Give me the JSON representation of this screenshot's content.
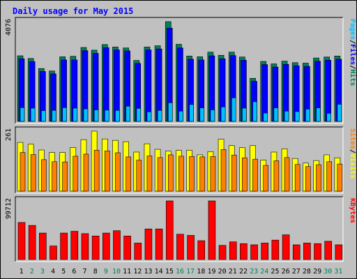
{
  "colors": {
    "background": "#c0c0c0",
    "panel": "#c0c0c0",
    "title": "#0000ff",
    "hits": "#00805c",
    "files": "#0000ff",
    "pages": "#00c0ff",
    "visits": "#ffff00",
    "sites": "#ff8000",
    "kbytes": "#ff0000",
    "weekday_label": "#000000",
    "weekend_label": "#00805c"
  },
  "chart_data": {
    "type": "bar",
    "title": "Daily usage for May 2015",
    "categories": [
      "1",
      "2",
      "3",
      "4",
      "5",
      "6",
      "7",
      "8",
      "9",
      "10",
      "11",
      "12",
      "13",
      "14",
      "15",
      "16",
      "17",
      "18",
      "19",
      "20",
      "21",
      "22",
      "23",
      "24",
      "25",
      "26",
      "27",
      "28",
      "29",
      "30",
      "31"
    ],
    "weekend_days": [
      "2",
      "3",
      "9",
      "10",
      "16",
      "17",
      "23",
      "24",
      "30",
      "31"
    ],
    "panels": [
      {
        "id": "hits",
        "ymax": 4076,
        "ymax_label": "4076",
        "right_label": [
          "Pages",
          "Files",
          "Hits"
        ],
        "series": [
          {
            "name": "Hits",
            "values": [
              2680,
              2570,
              2160,
              2060,
              2640,
              2660,
              3020,
              2910,
              3140,
              3040,
              3000,
              2490,
              3040,
              3090,
              4076,
              3150,
              2670,
              2640,
              2830,
              2700,
              2830,
              2630,
              1760,
              2450,
              2350,
              2460,
              2400,
              2380,
              2590,
              2630,
              2670
            ]
          },
          {
            "name": "Files",
            "values": [
              2560,
              2440,
              2040,
              1940,
              2510,
              2510,
              2890,
              2780,
              3010,
              2920,
              2880,
              2370,
              2920,
              2960,
              3810,
              3000,
              2540,
              2510,
              2680,
              2560,
              2690,
              2500,
              1640,
              2320,
              2220,
              2330,
              2270,
              2250,
              2460,
              2500,
              2540
            ]
          },
          {
            "name": "Pages",
            "values": [
              560,
              540,
              440,
              450,
              560,
              540,
              510,
              470,
              460,
              450,
              620,
              530,
              390,
              450,
              760,
              420,
              690,
              550,
              470,
              590,
              960,
              540,
              800,
              340,
              550,
              420,
              400,
              500,
              550,
              330,
              700
            ]
          }
        ]
      },
      {
        "id": "visits",
        "ymax": 261,
        "ymax_label": "261",
        "right_label": [
          "Sites",
          "Visits"
        ],
        "series": [
          {
            "name": "Visits",
            "values": [
              212,
              204,
              179,
              168,
              168,
              190,
              224,
              261,
              227,
              221,
              215,
              170,
              206,
              182,
              174,
              177,
              178,
              158,
              172,
              226,
              198,
              189,
              198,
              135,
              170,
              184,
              142,
              122,
              133,
              158,
              145
            ]
          },
          {
            "name": "Sites",
            "values": [
              168,
              159,
              137,
              128,
              127,
              152,
              161,
              178,
              175,
              167,
              149,
              135,
              153,
              146,
              158,
              152,
              151,
              149,
              151,
              181,
              157,
              145,
              139,
              112,
              132,
              146,
              116,
              107,
              115,
              128,
              118
            ]
          }
        ]
      },
      {
        "id": "kbytes",
        "ymax": 99712,
        "ymax_label": "99712",
        "right_label": [
          "KBytes"
        ],
        "series": [
          {
            "name": "KBytes",
            "values": [
              63000,
              58000,
              45000,
              23000,
              45000,
              48000,
              44000,
              40000,
              45000,
              49000,
              40000,
              28000,
              52000,
              52000,
              99712,
              43000,
              41000,
              32000,
              99712,
              24000,
              30000,
              27000,
              25000,
              28000,
              33000,
              42000,
              25000,
              28000,
              27000,
              31000,
              25000
            ]
          }
        ]
      }
    ]
  }
}
